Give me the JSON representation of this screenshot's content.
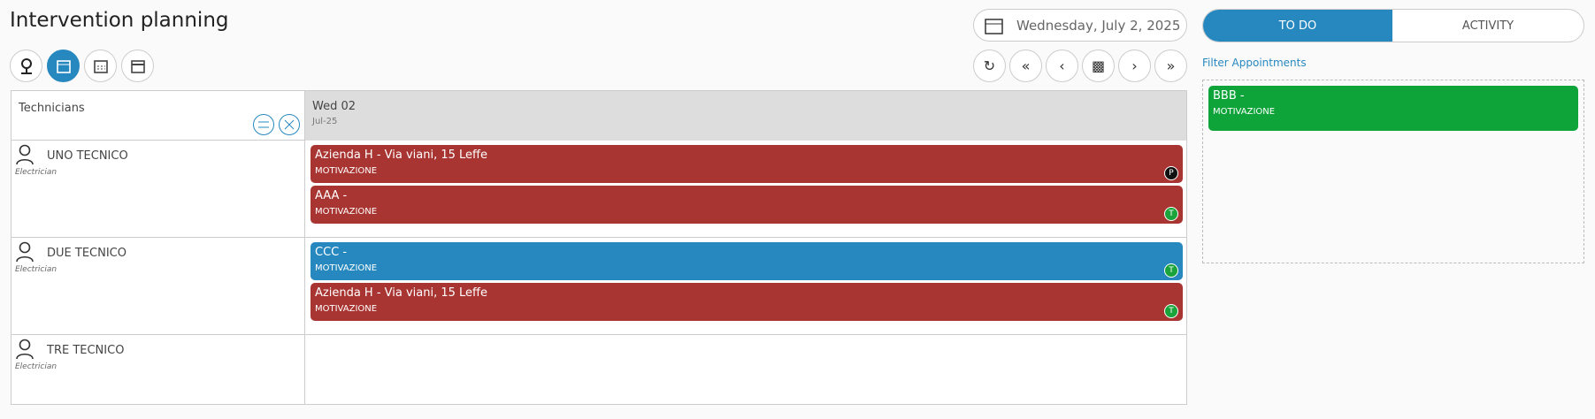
{
  "header": {
    "title": "Intervention planning",
    "date": "Wednesday, July 2, 2025"
  },
  "tabs": [
    "TO DO",
    "ACTIVITY"
  ],
  "filter_link": "Filter Appointments",
  "grid": {
    "column_label": "Technicians",
    "day": "Wed 02",
    "day_sub": "Jul-25"
  },
  "technicians": [
    {
      "name": "UNO TECNICO",
      "role": "Electrician",
      "appointments": [
        {
          "title": "Azienda H - Via viani, 15 Leffe",
          "reason": "MOTIVAZIONE",
          "badge": "P",
          "color": "#a93532",
          "badge_color": "#111111"
        },
        {
          "title": "AAA -",
          "reason": "MOTIVAZIONE",
          "badge": "T",
          "color": "#a93532",
          "badge_color": "#1aa33a"
        }
      ]
    },
    {
      "name": "DUE TECNICO",
      "role": "Electrician",
      "appointments": [
        {
          "title": "CCC -",
          "reason": "MOTIVAZIONE",
          "badge": "T",
          "color": "#2788bf",
          "badge_color": "#1aa33a"
        },
        {
          "title": "Azienda H - Via viani, 15 Leffe",
          "reason": "MOTIVAZIONE",
          "badge": "T",
          "color": "#a93532",
          "badge_color": "#1aa33a"
        }
      ]
    },
    {
      "name": "TRE TECNICO",
      "role": "Electrician",
      "appointments": []
    }
  ],
  "todo": [
    {
      "title": "BBB -",
      "reason": "MOTIVAZIONE",
      "color": "#0ea43a"
    }
  ]
}
